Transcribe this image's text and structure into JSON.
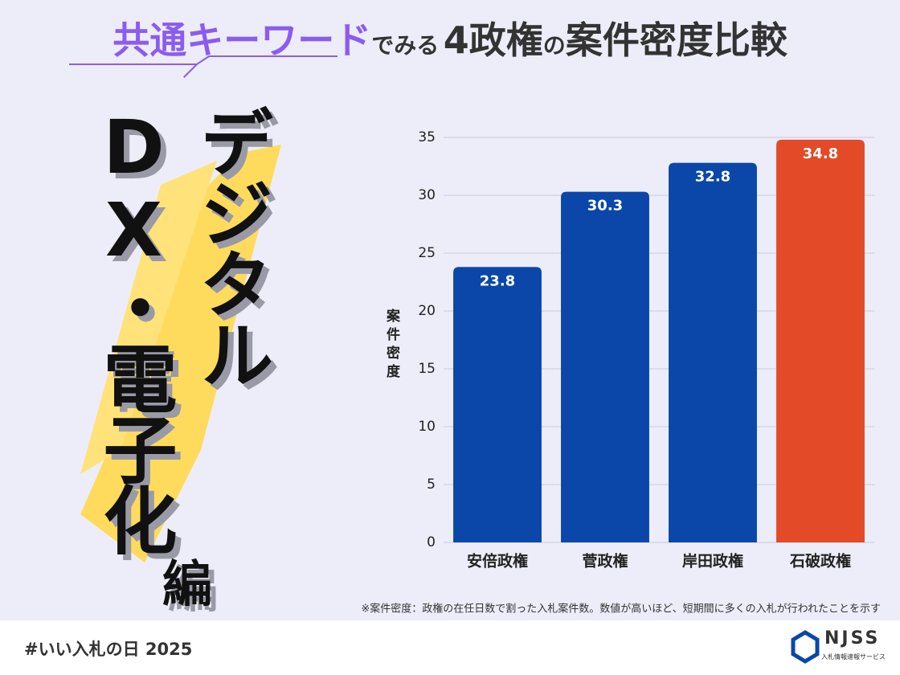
{
  "header": {
    "keyword": "共通キーワード",
    "connector1": "でみる",
    "number_part": "4政権",
    "connector2": "の",
    "title_rest": "案件密度比較"
  },
  "theme": {
    "line1": "デジタル",
    "line2": "DX・電子化",
    "suffix": "編"
  },
  "chart_data": {
    "type": "bar",
    "categories": [
      "安倍政権",
      "菅政権",
      "岸田政権",
      "石破政権"
    ],
    "values": [
      23.8,
      30.3,
      32.8,
      34.8
    ],
    "colors": [
      "#0a47a9",
      "#0a47a9",
      "#0a47a9",
      "#e24a28"
    ],
    "ylabel": "案件密度",
    "ylim": [
      0,
      35
    ],
    "yticks": [
      0,
      5,
      10,
      15,
      20,
      25,
      30,
      35
    ],
    "grid": true
  },
  "footnote": "※案件密度：政権の在任日数で割った入札案件数。数値が高いほど、短期間に多くの入札が行われたことを示す",
  "footer": {
    "hashtag": "#いい入札の日 2025",
    "logo": "NJSS",
    "logo_sub": "入札情報速報サービス"
  }
}
